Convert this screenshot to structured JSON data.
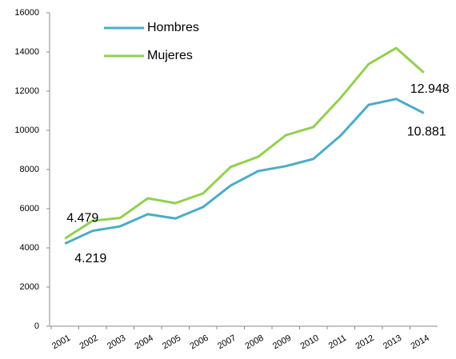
{
  "chart_data": {
    "type": "line",
    "categories": [
      "2001",
      "2002",
      "2003",
      "2004",
      "2005",
      "2006",
      "2007",
      "2008",
      "2009",
      "2010",
      "2011",
      "2012",
      "2013",
      "2014"
    ],
    "series": [
      {
        "name": "Hombres",
        "color": "#4bacc6",
        "values": [
          4219,
          4870,
          5100,
          5720,
          5500,
          6080,
          7180,
          7920,
          8170,
          8540,
          9750,
          11300,
          11600,
          10881
        ],
        "value_labels": [
          "4.219",
          null,
          null,
          null,
          null,
          null,
          null,
          null,
          null,
          null,
          null,
          null,
          null,
          "10.881"
        ]
      },
      {
        "name": "Mujeres",
        "color": "#92d050",
        "values": [
          4479,
          5380,
          5530,
          6530,
          6280,
          6780,
          8130,
          8650,
          9750,
          10170,
          11680,
          13380,
          14200,
          12948
        ],
        "value_labels": [
          "4.479",
          null,
          null,
          null,
          null,
          null,
          null,
          null,
          null,
          null,
          null,
          null,
          null,
          "12.948"
        ]
      }
    ],
    "ylim": [
      0,
      16000
    ],
    "yticks": [
      0,
      2000,
      4000,
      6000,
      8000,
      10000,
      12000,
      14000,
      16000
    ],
    "grid": false
  }
}
